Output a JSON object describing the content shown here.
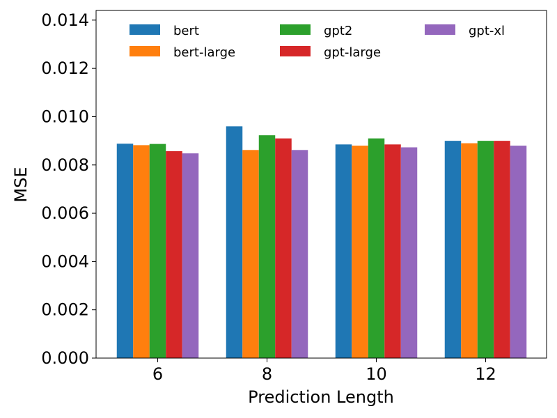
{
  "chart_data": {
    "type": "bar",
    "title": "",
    "xlabel": "Prediction Length",
    "ylabel": "MSE",
    "categories": [
      "6",
      "8",
      "10",
      "12"
    ],
    "ylim": [
      0,
      0.0144
    ],
    "yticks": [
      "0.000",
      "0.002",
      "0.004",
      "0.006",
      "0.008",
      "0.010",
      "0.012",
      "0.014"
    ],
    "ytick_values": [
      0,
      0.002,
      0.004,
      0.006,
      0.008,
      0.01,
      0.012,
      0.014
    ],
    "grid": false,
    "legend_position": "top",
    "series": [
      {
        "name": "bert",
        "color": "#1f77b4",
        "values": [
          0.00888,
          0.0096,
          0.00885,
          0.009
        ]
      },
      {
        "name": "bert-large",
        "color": "#ff7f0e",
        "values": [
          0.00882,
          0.00862,
          0.0088,
          0.0089
        ]
      },
      {
        "name": "gpt2",
        "color": "#2ca02c",
        "values": [
          0.00887,
          0.00923,
          0.0091,
          0.009
        ]
      },
      {
        "name": "gpt-large",
        "color": "#d62728",
        "values": [
          0.00857,
          0.0091,
          0.00885,
          0.009
        ]
      },
      {
        "name": "gpt-xl",
        "color": "#9467bd",
        "values": [
          0.00848,
          0.00862,
          0.00873,
          0.0088
        ]
      }
    ]
  }
}
